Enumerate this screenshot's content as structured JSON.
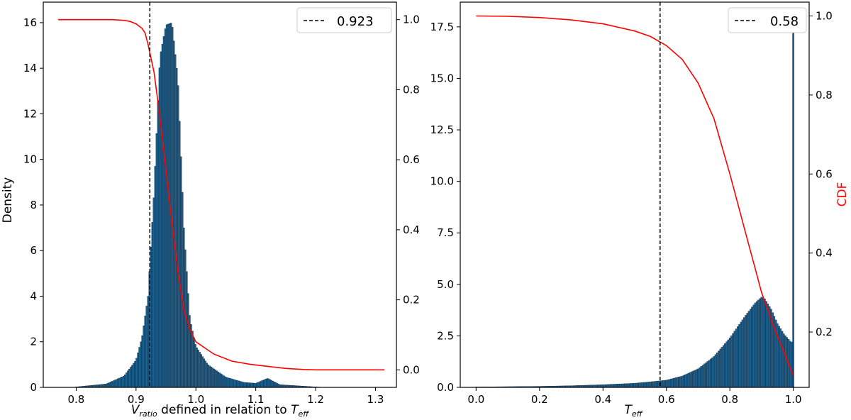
{
  "chart_data": [
    {
      "type": "bar",
      "xlabel": {
        "main": "V",
        "sub": "ratio",
        "mid": " defined in relation to ",
        "main2": "T",
        "sub2": "eff"
      },
      "ylabel": "Density",
      "y2label": "",
      "xlim": [
        0.745,
        1.335
      ],
      "ylim": [
        0,
        16.9
      ],
      "y2lim": [
        -0.05,
        1.05
      ],
      "xticks": [
        "0.8",
        "0.9",
        "1.0",
        "1.1",
        "1.2",
        "1.3"
      ],
      "xtick_values": [
        0.8,
        0.9,
        1.0,
        1.1,
        1.2,
        1.3
      ],
      "yticks": [
        "0",
        "2",
        "4",
        "6",
        "8",
        "10",
        "12",
        "14",
        "16"
      ],
      "ytick_values": [
        0,
        2,
        4,
        6,
        8,
        10,
        12,
        14,
        16
      ],
      "y2ticks": [
        "0.0",
        "0.2",
        "0.4",
        "0.6",
        "0.8",
        "1.0"
      ],
      "y2tick_values": [
        0.0,
        0.2,
        0.4,
        0.6,
        0.8,
        1.0
      ],
      "histogram": {
        "x": [
          0.8,
          0.85,
          0.88,
          0.9,
          0.91,
          0.92,
          0.93,
          0.94,
          0.95,
          0.96,
          0.97,
          0.98,
          0.99,
          1.0,
          1.02,
          1.05,
          1.08,
          1.1,
          1.12,
          1.14,
          1.17,
          1.2,
          1.22
        ],
        "density": [
          0.02,
          0.15,
          0.5,
          1.2,
          2.2,
          4.0,
          8.5,
          14.5,
          15.9,
          16.0,
          13.5,
          7.0,
          3.0,
          1.8,
          1.0,
          0.45,
          0.22,
          0.18,
          0.4,
          0.12,
          0.07,
          0.02,
          0.0
        ],
        "bin_width": 0.0024,
        "color": "#1f5f8b"
      },
      "cdf_line": {
        "color": "#ff0000",
        "x": [
          0.77,
          0.86,
          0.88,
          0.89,
          0.9,
          0.91,
          0.915,
          0.92,
          0.93,
          0.94,
          0.95,
          0.96,
          0.97,
          0.98,
          0.99,
          1.0,
          1.03,
          1.06,
          1.09,
          1.1,
          1.12,
          1.15,
          1.18,
          1.2,
          1.25,
          1.315
        ],
        "y": [
          1.0,
          1.0,
          0.998,
          0.995,
          0.988,
          0.975,
          0.962,
          0.93,
          0.85,
          0.72,
          0.57,
          0.42,
          0.28,
          0.17,
          0.115,
          0.08,
          0.045,
          0.025,
          0.016,
          0.014,
          0.01,
          0.004,
          0.001,
          0.0,
          0.0,
          0.0
        ]
      },
      "threshold": {
        "x": 0.923,
        "label": "0.923",
        "style": "dashed",
        "color": "#000000"
      },
      "legend_position": "top-right"
    },
    {
      "type": "bar",
      "xlabel": {
        "main": "T",
        "sub": "eff"
      },
      "ylabel": "",
      "y2label": "CDF",
      "y2label_color": "#ff0000",
      "xlim": [
        -0.05,
        1.05
      ],
      "ylim": [
        0,
        18.7
      ],
      "y2lim": [
        0.06,
        1.035
      ],
      "xticks": [
        "0.0",
        "0.2",
        "0.4",
        "0.6",
        "0.8",
        "1.0"
      ],
      "xtick_values": [
        0.0,
        0.2,
        0.4,
        0.6,
        0.8,
        1.0
      ],
      "yticks": [
        "0.0",
        "2.5",
        "5.0",
        "7.5",
        "10.0",
        "12.5",
        "15.0",
        "17.5"
      ],
      "ytick_values": [
        0.0,
        2.5,
        5.0,
        7.5,
        10.0,
        12.5,
        15.0,
        17.5
      ],
      "y2ticks": [
        "0.2",
        "0.4",
        "0.6",
        "0.8",
        "1.0"
      ],
      "y2tick_values": [
        0.2,
        0.4,
        0.6,
        0.8,
        1.0
      ],
      "histogram": {
        "x": [
          0.0,
          0.2,
          0.3,
          0.4,
          0.5,
          0.55,
          0.6,
          0.65,
          0.7,
          0.75,
          0.8,
          0.85,
          0.88,
          0.9,
          0.91,
          0.93,
          0.95,
          0.97,
          0.99,
          0.995,
          1.0
        ],
        "density": [
          0.02,
          0.05,
          0.08,
          0.13,
          0.2,
          0.27,
          0.35,
          0.55,
          0.9,
          1.5,
          2.4,
          3.5,
          4.1,
          4.38,
          4.3,
          3.8,
          3.1,
          2.6,
          2.25,
          2.2,
          17.4
        ],
        "bin_width": 0.005,
        "color": "#1f5f8b"
      },
      "cdf_line": {
        "color": "#ff0000",
        "x": [
          0.0,
          0.1,
          0.2,
          0.3,
          0.4,
          0.5,
          0.55,
          0.6,
          0.65,
          0.7,
          0.75,
          0.8,
          0.85,
          0.88,
          0.9,
          0.92,
          0.94,
          0.96,
          0.98,
          1.0
        ],
        "y": [
          1.0,
          0.999,
          0.996,
          0.99,
          0.98,
          0.962,
          0.948,
          0.925,
          0.89,
          0.83,
          0.74,
          0.6,
          0.45,
          0.36,
          0.3,
          0.255,
          0.21,
          0.17,
          0.13,
          0.09
        ]
      },
      "threshold": {
        "x": 0.58,
        "label": "0.58",
        "style": "dashed",
        "color": "#000000"
      },
      "legend_position": "top-right"
    }
  ]
}
